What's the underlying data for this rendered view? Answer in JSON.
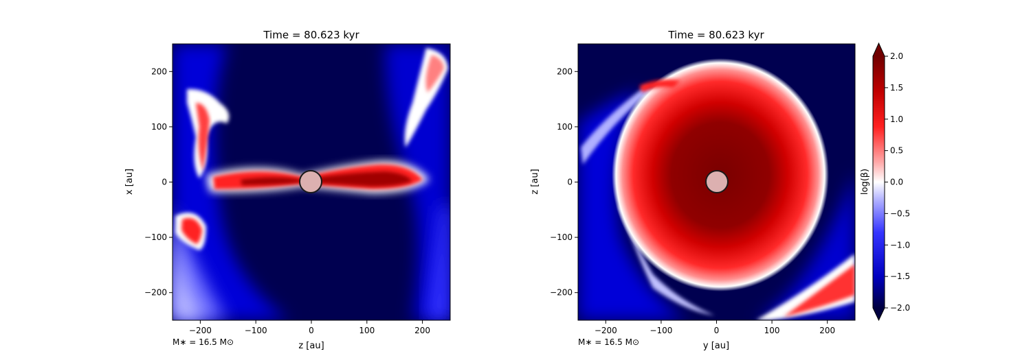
{
  "chart_data": [
    {
      "type": "heatmap",
      "title": "Time = 80.623 kyr",
      "xlabel": "z [au]",
      "ylabel": "x [au]",
      "xlim": [
        -250,
        250
      ],
      "ylim": [
        -250,
        250
      ],
      "xticks": [
        -200,
        -100,
        0,
        100,
        200
      ],
      "yticks": [
        -200,
        -100,
        0,
        100,
        200
      ],
      "annotation": "M∗ = 16.5 M⊙",
      "sink_particle": {
        "x": 0,
        "y": 0,
        "radius_au": 19
      },
      "features": "thin red equatorial band along z from -180 to 210 au, thickest near z=+150; red filaments toward upper-left and upper-right; red blob near z=-210, x=-80; dark blue polar regions"
    },
    {
      "type": "heatmap",
      "title": "Time = 80.623 kyr",
      "xlabel": "y [au]",
      "ylabel": "z [au]",
      "xlim": [
        -250,
        250
      ],
      "ylim": [
        -250,
        250
      ],
      "xticks": [
        -200,
        -100,
        0,
        100,
        200
      ],
      "yticks": [
        -200,
        -100,
        0,
        100,
        200
      ],
      "annotation": "M∗ = 16.5 M⊙",
      "sink_particle": {
        "x": 0,
        "y": 0,
        "radius_au": 19
      },
      "features": "large red disk of radius ~170 au centered near (0,10) with dark red core; white rim; red band in lower-right corner; blue filaments on left"
    }
  ],
  "colorbar": {
    "label": "log(β)",
    "min": -2.0,
    "max": 2.0,
    "ticks": [
      "2.0",
      "1.5",
      "1.0",
      "0.5",
      "0.0",
      "−0.5",
      "−1.0",
      "−1.5",
      "−2.0"
    ],
    "tick_values": [
      2.0,
      1.5,
      1.0,
      0.5,
      0.0,
      -0.5,
      -1.0,
      -1.5,
      -2.0
    ],
    "colormap": [
      "#000040",
      "#0000c0",
      "#3030ff",
      "#a0a0ff",
      "#ffffff",
      "#ffa0a0",
      "#ff2020",
      "#c00000",
      "#700000"
    ],
    "extend": "both"
  }
}
